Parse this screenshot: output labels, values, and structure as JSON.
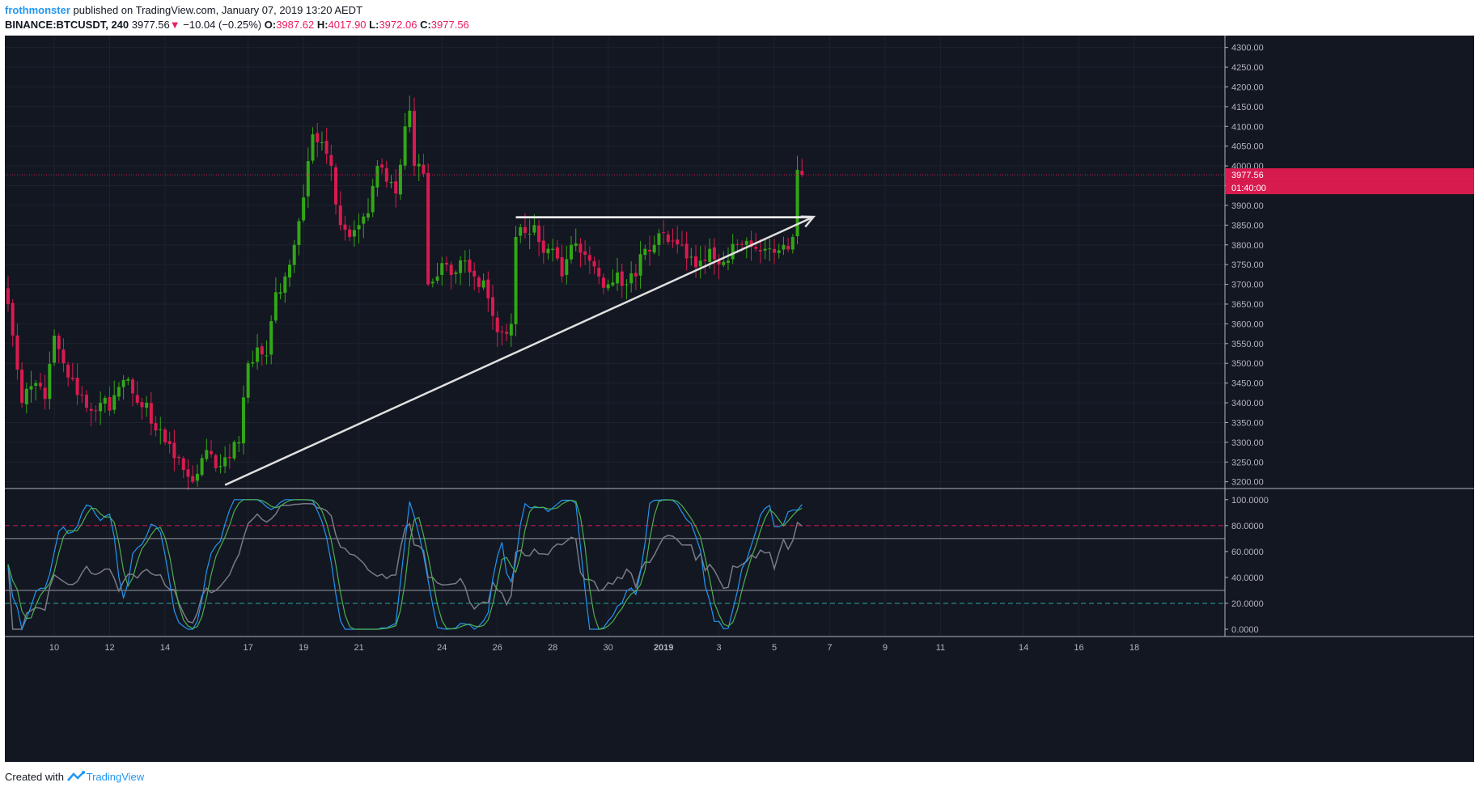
{
  "header": {
    "author": "frothmonster",
    "published": "published on TradingView.com, January 07, 2019 13:20 AEDT",
    "symbol": "BINANCE:BTCUSDT, 240",
    "last": "3977.56",
    "arrow": "▼",
    "change": "−10.04 (−0.25%)",
    "o_label": "O:",
    "o_value": "3987.62",
    "h_label": "H:",
    "h_value": "4017.90",
    "l_label": "L:",
    "l_value": "3972.06",
    "c_label": "C:",
    "c_value": "3977.56"
  },
  "footer": {
    "created": "Created with",
    "brand": "TradingView",
    "logo_icon": "tradingview-logo-icon"
  },
  "chart_data": {
    "type": "candlestick",
    "price_axis": {
      "ticks": [
        "4300.00",
        "4250.00",
        "4200.00",
        "4150.00",
        "4100.00",
        "4050.00",
        "4000.00",
        "3950.00",
        "3900.00",
        "3850.00",
        "3800.00",
        "3750.00",
        "3700.00",
        "3650.00",
        "3600.00",
        "3550.00",
        "3500.00",
        "3450.00",
        "3400.00",
        "3350.00",
        "3300.00",
        "3250.00",
        "3200.00"
      ],
      "range": [
        3185,
        4330
      ],
      "last_price_label": "3977.56",
      "countdown_label": "01:40:00"
    },
    "osc_axis": {
      "ticks": [
        "100.0000",
        "80.0000",
        "60.0000",
        "40.0000",
        "20.0000",
        "0.0000"
      ],
      "range": [
        -5,
        108
      ],
      "levels": [
        80,
        70,
        30,
        20
      ]
    },
    "date_axis": {
      "labels": [
        {
          "label": "10",
          "i": 10
        },
        {
          "label": "12",
          "i": 22
        },
        {
          "label": "14",
          "i": 34
        },
        {
          "label": "17",
          "i": 52
        },
        {
          "label": "19",
          "i": 64
        },
        {
          "label": "21",
          "i": 76
        },
        {
          "label": "24",
          "i": 94
        },
        {
          "label": "26",
          "i": 106
        },
        {
          "label": "28",
          "i": 118
        },
        {
          "label": "30",
          "i": 130
        },
        {
          "label": "2019",
          "i": 142
        },
        {
          "label": "3",
          "i": 154
        },
        {
          "label": "5",
          "i": 166
        },
        {
          "label": "7",
          "i": 178
        },
        {
          "label": "9",
          "i": 190
        },
        {
          "label": "11",
          "i": 202
        },
        {
          "label": "14",
          "i": 220
        },
        {
          "label": "16",
          "i": 232
        },
        {
          "label": "18",
          "i": 244
        }
      ]
    },
    "close_anchors": [
      [
        0,
        3650
      ],
      [
        3,
        3400
      ],
      [
        6,
        3450
      ],
      [
        8,
        3410
      ],
      [
        10,
        3570
      ],
      [
        12,
        3500
      ],
      [
        14,
        3460
      ],
      [
        16,
        3420
      ],
      [
        18,
        3380
      ],
      [
        20,
        3400
      ],
      [
        22,
        3380
      ],
      [
        24,
        3440
      ],
      [
        26,
        3460
      ],
      [
        28,
        3400
      ],
      [
        30,
        3400
      ],
      [
        32,
        3330
      ],
      [
        34,
        3300
      ],
      [
        36,
        3260
      ],
      [
        38,
        3230
      ],
      [
        40,
        3200
      ],
      [
        42,
        3260
      ],
      [
        44,
        3270
      ],
      [
        46,
        3240
      ],
      [
        48,
        3260
      ],
      [
        50,
        3300
      ],
      [
        52,
        3500
      ],
      [
        54,
        3540
      ],
      [
        56,
        3520
      ],
      [
        58,
        3680
      ],
      [
        60,
        3720
      ],
      [
        62,
        3800
      ],
      [
        64,
        3920
      ],
      [
        66,
        4080
      ],
      [
        68,
        4060
      ],
      [
        70,
        4000
      ],
      [
        72,
        3850
      ],
      [
        74,
        3820
      ],
      [
        76,
        3850
      ],
      [
        78,
        3880
      ],
      [
        80,
        4000
      ],
      [
        82,
        3960
      ],
      [
        84,
        3930
      ],
      [
        86,
        4100
      ],
      [
        87,
        4140
      ],
      [
        88,
        4000
      ],
      [
        90,
        3980
      ],
      [
        91,
        3700
      ],
      [
        93,
        3720
      ],
      [
        95,
        3750
      ],
      [
        97,
        3730
      ],
      [
        99,
        3760
      ],
      [
        101,
        3720
      ],
      [
        103,
        3710
      ],
      [
        105,
        3620
      ],
      [
        107,
        3580
      ],
      [
        109,
        3600
      ],
      [
        110,
        3820
      ],
      [
        112,
        3830
      ],
      [
        114,
        3850
      ],
      [
        116,
        3780
      ],
      [
        118,
        3790
      ],
      [
        120,
        3720
      ],
      [
        122,
        3800
      ],
      [
        124,
        3780
      ],
      [
        126,
        3760
      ],
      [
        128,
        3720
      ],
      [
        130,
        3700
      ],
      [
        132,
        3730
      ],
      [
        134,
        3700
      ],
      [
        136,
        3720
      ],
      [
        138,
        3790
      ],
      [
        140,
        3800
      ],
      [
        142,
        3830
      ],
      [
        144,
        3810
      ],
      [
        146,
        3800
      ],
      [
        148,
        3770
      ],
      [
        150,
        3760
      ],
      [
        152,
        3790
      ],
      [
        154,
        3750
      ],
      [
        156,
        3760
      ],
      [
        158,
        3800
      ],
      [
        160,
        3810
      ],
      [
        162,
        3790
      ],
      [
        164,
        3790
      ],
      [
        166,
        3780
      ],
      [
        168,
        3800
      ],
      [
        170,
        3820
      ],
      [
        171,
        3990
      ],
      [
        172,
        3978
      ]
    ],
    "last_candle": {
      "o": 3987.62,
      "h": 4017.9,
      "l": 3972.06,
      "c": 3977.56
    },
    "drawings": {
      "resistance": {
        "i1": 110,
        "i2": 174,
        "price": 3870
      },
      "trendline": {
        "i1": 47,
        "p1": 3192,
        "i2": 174.5,
        "p2": 3871
      }
    }
  }
}
